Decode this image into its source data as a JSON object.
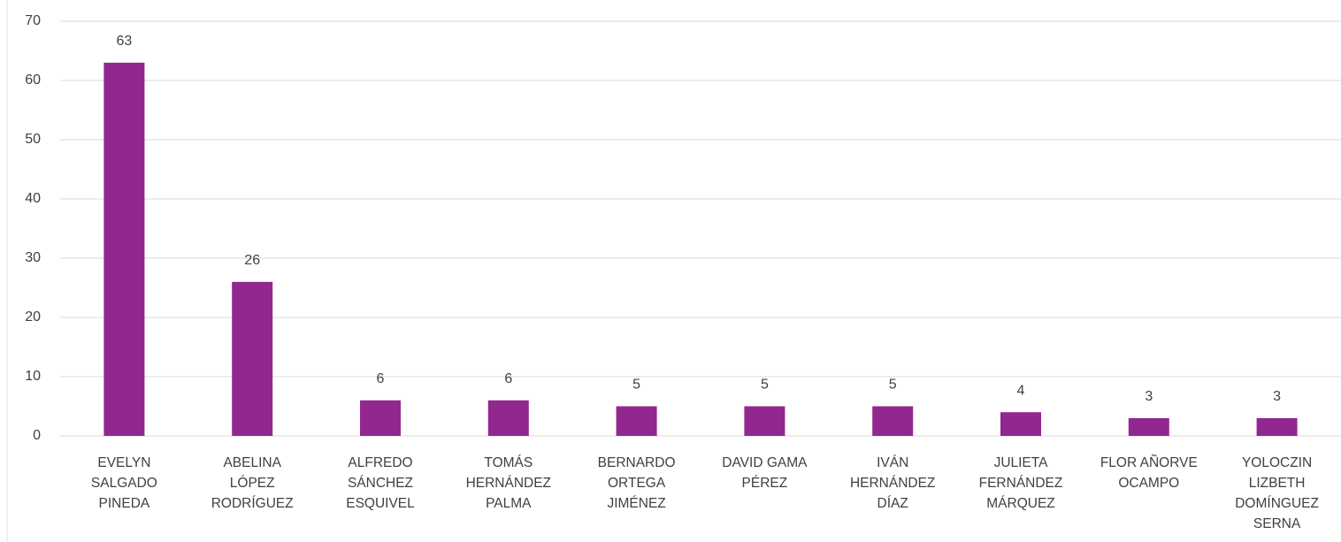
{
  "chart_data": {
    "type": "bar",
    "categories": [
      "EVELYN SALGADO PINEDA",
      "ABELINA LÓPEZ RODRÍGUEZ",
      "ALFREDO SÁNCHEZ ESQUIVEL",
      "TOMÁS HERNÁNDEZ PALMA",
      "BERNARDO ORTEGA JIMÉNEZ",
      "DAVID GAMA PÉREZ",
      "IVÁN HERNÁNDEZ DÍAZ",
      "JULIETA FERNÁNDEZ MÁRQUEZ",
      "FLOR AÑORVE OCAMPO",
      "YOLOCZIN LIZBETH DOMÍNGUEZ SERNA"
    ],
    "values": [
      63,
      26,
      6,
      6,
      5,
      5,
      5,
      4,
      3,
      3
    ],
    "color": "#92278f",
    "ylim": [
      0,
      70
    ],
    "yticks": [
      0,
      10,
      20,
      30,
      40,
      50,
      60,
      70
    ],
    "grid": true
  }
}
